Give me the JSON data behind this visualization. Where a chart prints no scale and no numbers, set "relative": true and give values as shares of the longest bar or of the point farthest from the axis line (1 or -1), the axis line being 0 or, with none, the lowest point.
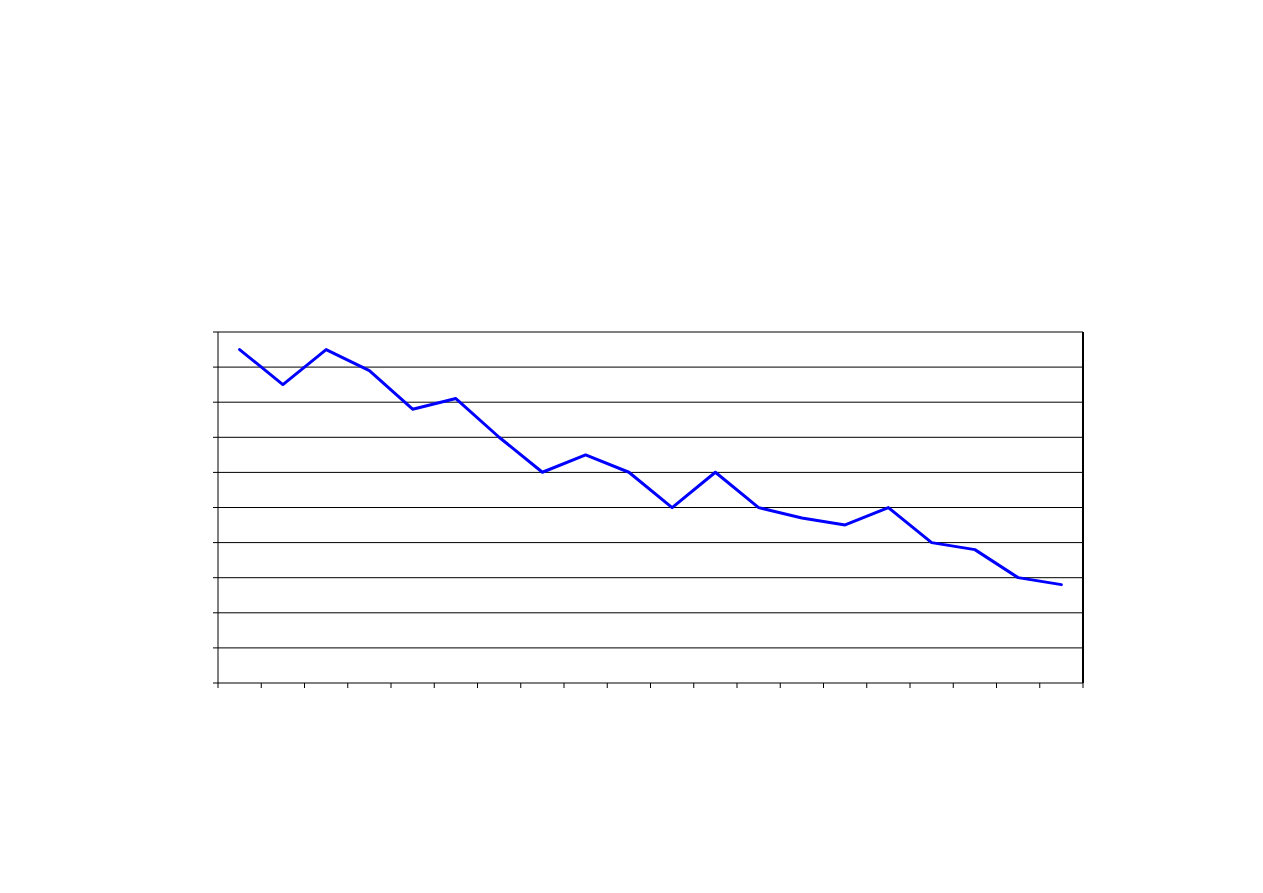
{
  "chart_data": {
    "type": "line",
    "relative": true,
    "categories": [
      null,
      null,
      null,
      null,
      null,
      null,
      null,
      null,
      null,
      null,
      null,
      null,
      null,
      null,
      null,
      null,
      null,
      null,
      null,
      null
    ],
    "series": [
      {
        "color": "#0000ff",
        "values": [
          1,
          0.895,
          1,
          0.937,
          0.821,
          0.853,
          0.737,
          0.632,
          0.684,
          0.632,
          0.526,
          0.632,
          0.526,
          0.495,
          0.474,
          0.526,
          0.421,
          0.4,
          0.316,
          0.295
        ]
      }
    ],
    "grid": "y",
    "line_style": "solid"
  }
}
